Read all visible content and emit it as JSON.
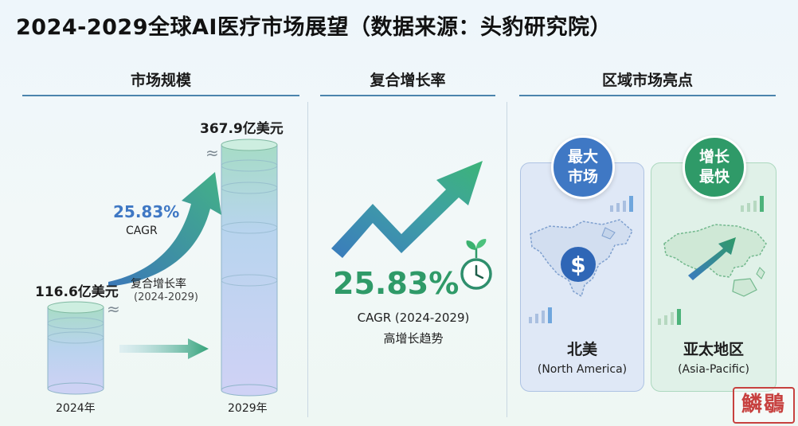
{
  "title": "2024-2029全球AI医疗市场展望（数据来源：头豹研究院）",
  "sections": {
    "market_size": "市场规模",
    "cagr": "复合增长率",
    "regions": "区域市场亮点"
  },
  "market": {
    "start_value": "116.6亿美元",
    "end_value": "367.9亿美元",
    "start_year": "2024年",
    "end_year": "2029年",
    "cagr_value": "25.83%",
    "cagr_label": "CAGR",
    "growth_label": "复合增长率",
    "growth_period": "(2024-2029)",
    "approx_symbol": "≈"
  },
  "cagr_panel": {
    "value": "25.83%",
    "label": "CAGR (2024-2029)",
    "subtitle": "高增长趋势"
  },
  "regions": [
    {
      "badge_line1": "最大",
      "badge_line2": "市场",
      "name": "北美",
      "name_en": "(North America)"
    },
    {
      "badge_line1": "增长",
      "badge_line2": "最快",
      "name": "亚太地区",
      "name_en": "(Asia-Pacific)"
    }
  ],
  "seal_text": "鱗鶡",
  "colors": {
    "accent_blue": "#3f78c4",
    "accent_green": "#2f9a68",
    "title_line": "#4b84ad"
  }
}
